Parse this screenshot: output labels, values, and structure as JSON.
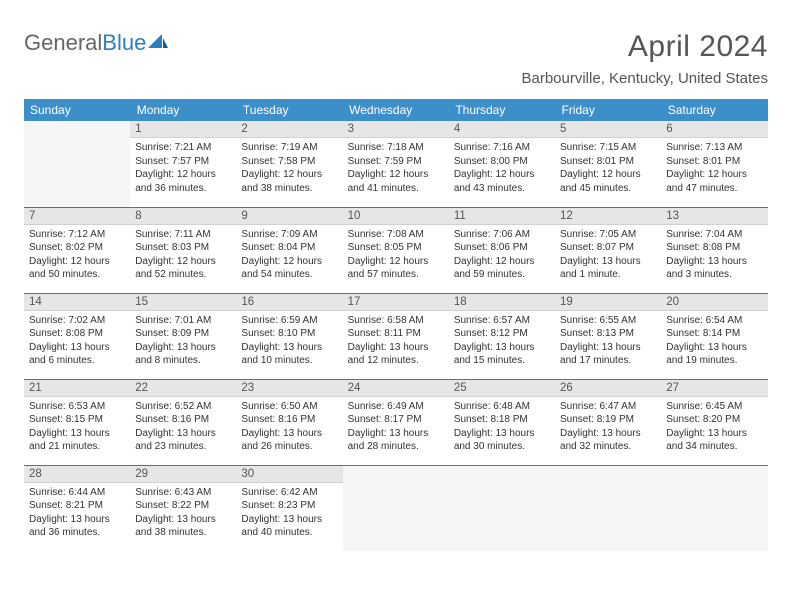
{
  "brand": {
    "part1": "General",
    "part2": "Blue"
  },
  "title": "April 2024",
  "location": "Barbourville, Kentucky, United States",
  "weekdays": [
    "Sunday",
    "Monday",
    "Tuesday",
    "Wednesday",
    "Thursday",
    "Friday",
    "Saturday"
  ],
  "colors": {
    "header_bg": "#3d8fc9",
    "header_text": "#ffffff",
    "divider": "#2c7fb8",
    "daynum_bg": "#e6e6e6",
    "empty_bg": "#f5f5f5",
    "title_color": "#555555",
    "body_text": "#333333"
  },
  "layout": {
    "rows": 5,
    "cols": 7,
    "first_weekday_offset": 1,
    "days_in_month": 30
  },
  "days": {
    "1": {
      "sunrise": "7:21 AM",
      "sunset": "7:57 PM",
      "daylight": "12 hours and 36 minutes."
    },
    "2": {
      "sunrise": "7:19 AM",
      "sunset": "7:58 PM",
      "daylight": "12 hours and 38 minutes."
    },
    "3": {
      "sunrise": "7:18 AM",
      "sunset": "7:59 PM",
      "daylight": "12 hours and 41 minutes."
    },
    "4": {
      "sunrise": "7:16 AM",
      "sunset": "8:00 PM",
      "daylight": "12 hours and 43 minutes."
    },
    "5": {
      "sunrise": "7:15 AM",
      "sunset": "8:01 PM",
      "daylight": "12 hours and 45 minutes."
    },
    "6": {
      "sunrise": "7:13 AM",
      "sunset": "8:01 PM",
      "daylight": "12 hours and 47 minutes."
    },
    "7": {
      "sunrise": "7:12 AM",
      "sunset": "8:02 PM",
      "daylight": "12 hours and 50 minutes."
    },
    "8": {
      "sunrise": "7:11 AM",
      "sunset": "8:03 PM",
      "daylight": "12 hours and 52 minutes."
    },
    "9": {
      "sunrise": "7:09 AM",
      "sunset": "8:04 PM",
      "daylight": "12 hours and 54 minutes."
    },
    "10": {
      "sunrise": "7:08 AM",
      "sunset": "8:05 PM",
      "daylight": "12 hours and 57 minutes."
    },
    "11": {
      "sunrise": "7:06 AM",
      "sunset": "8:06 PM",
      "daylight": "12 hours and 59 minutes."
    },
    "12": {
      "sunrise": "7:05 AM",
      "sunset": "8:07 PM",
      "daylight": "13 hours and 1 minute."
    },
    "13": {
      "sunrise": "7:04 AM",
      "sunset": "8:08 PM",
      "daylight": "13 hours and 3 minutes."
    },
    "14": {
      "sunrise": "7:02 AM",
      "sunset": "8:08 PM",
      "daylight": "13 hours and 6 minutes."
    },
    "15": {
      "sunrise": "7:01 AM",
      "sunset": "8:09 PM",
      "daylight": "13 hours and 8 minutes."
    },
    "16": {
      "sunrise": "6:59 AM",
      "sunset": "8:10 PM",
      "daylight": "13 hours and 10 minutes."
    },
    "17": {
      "sunrise": "6:58 AM",
      "sunset": "8:11 PM",
      "daylight": "13 hours and 12 minutes."
    },
    "18": {
      "sunrise": "6:57 AM",
      "sunset": "8:12 PM",
      "daylight": "13 hours and 15 minutes."
    },
    "19": {
      "sunrise": "6:55 AM",
      "sunset": "8:13 PM",
      "daylight": "13 hours and 17 minutes."
    },
    "20": {
      "sunrise": "6:54 AM",
      "sunset": "8:14 PM",
      "daylight": "13 hours and 19 minutes."
    },
    "21": {
      "sunrise": "6:53 AM",
      "sunset": "8:15 PM",
      "daylight": "13 hours and 21 minutes."
    },
    "22": {
      "sunrise": "6:52 AM",
      "sunset": "8:16 PM",
      "daylight": "13 hours and 23 minutes."
    },
    "23": {
      "sunrise": "6:50 AM",
      "sunset": "8:16 PM",
      "daylight": "13 hours and 26 minutes."
    },
    "24": {
      "sunrise": "6:49 AM",
      "sunset": "8:17 PM",
      "daylight": "13 hours and 28 minutes."
    },
    "25": {
      "sunrise": "6:48 AM",
      "sunset": "8:18 PM",
      "daylight": "13 hours and 30 minutes."
    },
    "26": {
      "sunrise": "6:47 AM",
      "sunset": "8:19 PM",
      "daylight": "13 hours and 32 minutes."
    },
    "27": {
      "sunrise": "6:45 AM",
      "sunset": "8:20 PM",
      "daylight": "13 hours and 34 minutes."
    },
    "28": {
      "sunrise": "6:44 AM",
      "sunset": "8:21 PM",
      "daylight": "13 hours and 36 minutes."
    },
    "29": {
      "sunrise": "6:43 AM",
      "sunset": "8:22 PM",
      "daylight": "13 hours and 38 minutes."
    },
    "30": {
      "sunrise": "6:42 AM",
      "sunset": "8:23 PM",
      "daylight": "13 hours and 40 minutes."
    }
  },
  "labels": {
    "sunrise_prefix": "Sunrise: ",
    "sunset_prefix": "Sunset: ",
    "daylight_prefix": "Daylight: "
  }
}
